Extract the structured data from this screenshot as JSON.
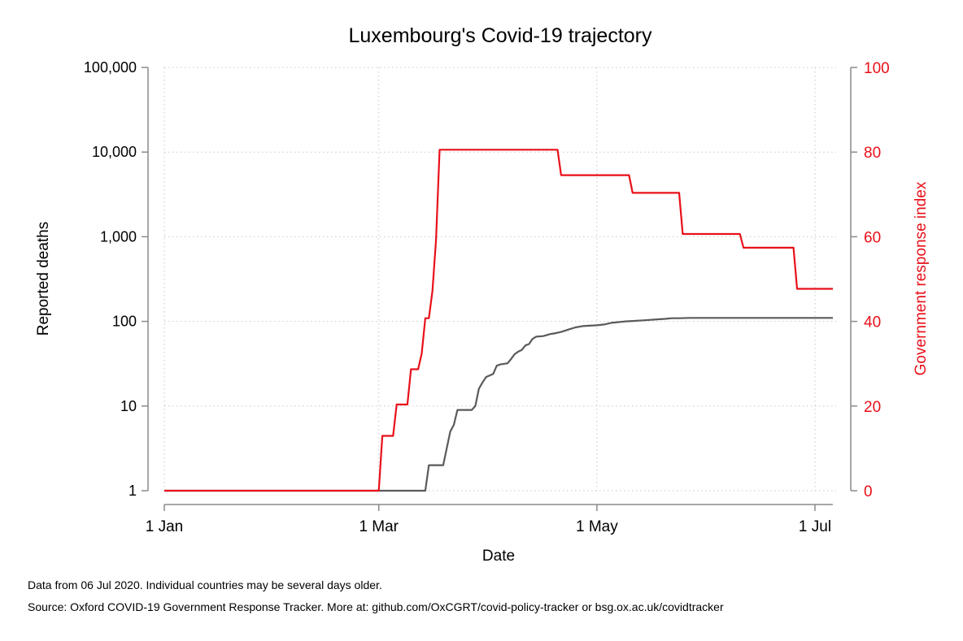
{
  "chart_data": {
    "type": "line",
    "title": "Luxembourg's Covid-19 trajectory",
    "xlabel": "Date",
    "ylabel": "Reported deaths",
    "y2label": "Government response index",
    "x_ticks": [
      {
        "date": "2020-01-01",
        "label": "1 Jan"
      },
      {
        "date": "2020-03-01",
        "label": "1 Mar"
      },
      {
        "date": "2020-05-01",
        "label": "1 May"
      },
      {
        "date": "2020-07-01",
        "label": "1 Jul"
      }
    ],
    "y_left": {
      "scale": "log",
      "range": [
        1,
        100000
      ],
      "ticks": [
        1,
        10,
        100,
        1000,
        10000,
        100000
      ],
      "tick_labels": [
        "1",
        "10",
        "100",
        "1,000",
        "10,000",
        "100,000"
      ]
    },
    "y_right": {
      "scale": "linear",
      "range": [
        0,
        100
      ],
      "ticks": [
        0,
        20,
        40,
        60,
        80,
        100
      ],
      "tick_labels": [
        "0",
        "20",
        "40",
        "60",
        "80",
        "100"
      ]
    },
    "x_range": [
      "2020-01-01",
      "2020-07-06"
    ],
    "grid": true,
    "series": [
      {
        "axis": "left",
        "color": "#5a5a5a",
        "points": [
          [
            "2020-01-01",
            1
          ],
          [
            "2020-03-01",
            1
          ],
          [
            "2020-03-14",
            1
          ],
          [
            "2020-03-15",
            2
          ],
          [
            "2020-03-19",
            2
          ],
          [
            "2020-03-21",
            5
          ],
          [
            "2020-03-22",
            6
          ],
          [
            "2020-03-23",
            9
          ],
          [
            "2020-03-27",
            9
          ],
          [
            "2020-03-28",
            10
          ],
          [
            "2020-03-29",
            16
          ],
          [
            "2020-03-30",
            19
          ],
          [
            "2020-03-31",
            22
          ],
          [
            "2020-04-02",
            24
          ],
          [
            "2020-04-03",
            30
          ],
          [
            "2020-04-04",
            31
          ],
          [
            "2020-04-06",
            32
          ],
          [
            "2020-04-07",
            36
          ],
          [
            "2020-04-08",
            41
          ],
          [
            "2020-04-09",
            44
          ],
          [
            "2020-04-10",
            46
          ],
          [
            "2020-04-11",
            52
          ],
          [
            "2020-04-12",
            54
          ],
          [
            "2020-04-13",
            62
          ],
          [
            "2020-04-14",
            66
          ],
          [
            "2020-04-16",
            67
          ],
          [
            "2020-04-17",
            69
          ],
          [
            "2020-04-18",
            71
          ],
          [
            "2020-04-19",
            72
          ],
          [
            "2020-04-21",
            75
          ],
          [
            "2020-04-23",
            80
          ],
          [
            "2020-04-25",
            85
          ],
          [
            "2020-04-27",
            88
          ],
          [
            "2020-04-29",
            89
          ],
          [
            "2020-05-01",
            90
          ],
          [
            "2020-05-03",
            92
          ],
          [
            "2020-05-05",
            96
          ],
          [
            "2020-05-07",
            98
          ],
          [
            "2020-05-09",
            100
          ],
          [
            "2020-05-11",
            101
          ],
          [
            "2020-05-14",
            103
          ],
          [
            "2020-05-17",
            105
          ],
          [
            "2020-05-20",
            107
          ],
          [
            "2020-05-22",
            109
          ],
          [
            "2020-05-24",
            109
          ],
          [
            "2020-05-27",
            110
          ],
          [
            "2020-06-15",
            110
          ],
          [
            "2020-07-06",
            110
          ]
        ]
      },
      {
        "axis": "right",
        "color": "#e8101a",
        "points": [
          [
            "2020-01-01",
            0
          ],
          [
            "2020-03-01",
            0
          ],
          [
            "2020-03-02",
            12.96
          ],
          [
            "2020-03-05",
            12.96
          ],
          [
            "2020-03-06",
            20.37
          ],
          [
            "2020-03-09",
            20.37
          ],
          [
            "2020-03-10",
            28.7
          ],
          [
            "2020-03-12",
            28.7
          ],
          [
            "2020-03-13",
            32.41
          ],
          [
            "2020-03-14",
            40.74
          ],
          [
            "2020-03-15",
            40.74
          ],
          [
            "2020-03-16",
            47.22
          ],
          [
            "2020-03-17",
            59.26
          ],
          [
            "2020-03-18",
            80.56
          ],
          [
            "2020-04-20",
            80.56
          ],
          [
            "2020-04-21",
            74.54
          ],
          [
            "2020-05-10",
            74.54
          ],
          [
            "2020-05-11",
            70.37
          ],
          [
            "2020-05-24",
            70.37
          ],
          [
            "2020-05-25",
            60.65
          ],
          [
            "2020-06-10",
            60.65
          ],
          [
            "2020-06-11",
            57.41
          ],
          [
            "2020-06-25",
            57.41
          ],
          [
            "2020-06-26",
            47.69
          ],
          [
            "2020-07-06",
            47.69
          ]
        ]
      }
    ]
  },
  "footnotes": {
    "line1": "Data from 06 Jul 2020. Individual countries may be several days older.",
    "line2": "Source: Oxford COVID-19 Government Response Tracker. More at: github.com/OxCGRT/covid-policy-tracker or bsg.ox.ac.uk/covidtracker"
  }
}
